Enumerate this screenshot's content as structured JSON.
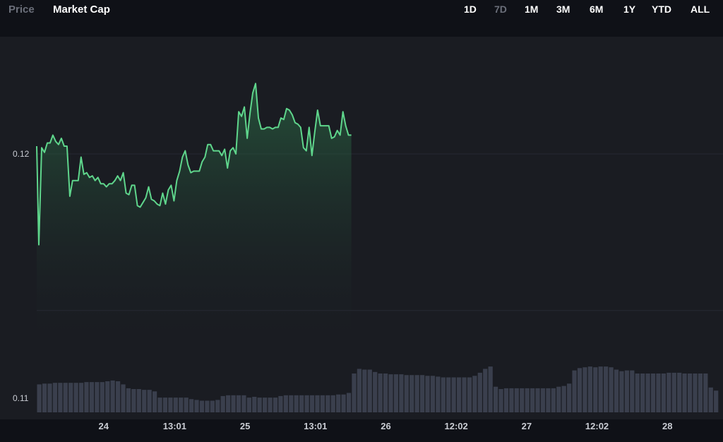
{
  "tabs": {
    "price": "Price",
    "market_cap": "Market Cap"
  },
  "ranges": [
    {
      "label": "1D",
      "active": false
    },
    {
      "label": "7D",
      "active": true
    },
    {
      "label": "1M",
      "active": false
    },
    {
      "label": "3M",
      "active": false
    },
    {
      "label": "6M",
      "active": false
    },
    {
      "label": "1Y",
      "active": false
    },
    {
      "label": "YTD",
      "active": false
    },
    {
      "label": "ALL",
      "active": false
    }
  ],
  "colors": {
    "line": "#5fd68c",
    "volume": "#3a3f4d",
    "background": "#1a1c22",
    "grid": "#262933"
  },
  "chart_data": {
    "type": "area",
    "title": "",
    "xlabel": "",
    "ylabel": "",
    "ylim": [
      0.1071,
      0.1251
    ],
    "y_ticks": [
      {
        "value": 0.12,
        "label": "0.12"
      },
      {
        "value": 0.11,
        "label": "0.11"
      }
    ],
    "x_range": [
      0.175,
      5.02
    ],
    "x_ticks": [
      {
        "pos": 0.65,
        "label": "24"
      },
      {
        "pos": 1.155,
        "label": "13:01"
      },
      {
        "pos": 1.655,
        "label": "25"
      },
      {
        "pos": 2.155,
        "label": "13:01"
      },
      {
        "pos": 2.655,
        "label": "26"
      },
      {
        "pos": 3.155,
        "label": "12:02"
      },
      {
        "pos": 3.655,
        "label": "27"
      },
      {
        "pos": 4.155,
        "label": "12:02"
      },
      {
        "pos": 4.655,
        "label": "28"
      }
    ],
    "series": [
      {
        "points": [
          [
            0.175,
            0.1205
          ],
          [
            0.19,
            0.1142
          ],
          [
            0.21,
            0.1204
          ],
          [
            0.23,
            0.1201
          ],
          [
            0.25,
            0.1207
          ],
          [
            0.27,
            0.1207
          ],
          [
            0.29,
            0.1212
          ],
          [
            0.31,
            0.1208
          ],
          [
            0.33,
            0.1206
          ],
          [
            0.35,
            0.121
          ],
          [
            0.37,
            0.1205
          ],
          [
            0.39,
            0.1205
          ],
          [
            0.41,
            0.1173
          ],
          [
            0.43,
            0.1183
          ],
          [
            0.45,
            0.1183
          ],
          [
            0.47,
            0.1183
          ],
          [
            0.49,
            0.1198
          ],
          [
            0.51,
            0.1187
          ],
          [
            0.53,
            0.1188
          ],
          [
            0.55,
            0.1185
          ],
          [
            0.57,
            0.1186
          ],
          [
            0.59,
            0.1183
          ],
          [
            0.61,
            0.1185
          ],
          [
            0.63,
            0.1181
          ],
          [
            0.65,
            0.1181
          ],
          [
            0.67,
            0.1179
          ],
          [
            0.69,
            0.1181
          ],
          [
            0.71,
            0.1181
          ],
          [
            0.73,
            0.1183
          ],
          [
            0.75,
            0.1186
          ],
          [
            0.77,
            0.1183
          ],
          [
            0.79,
            0.1188
          ],
          [
            0.81,
            0.1175
          ],
          [
            0.83,
            0.1174
          ],
          [
            0.85,
            0.118
          ],
          [
            0.87,
            0.118
          ],
          [
            0.89,
            0.1167
          ],
          [
            0.91,
            0.1166
          ],
          [
            0.93,
            0.1169
          ],
          [
            0.95,
            0.1172
          ],
          [
            0.97,
            0.1179
          ],
          [
            0.99,
            0.1171
          ],
          [
            1.01,
            0.117
          ],
          [
            1.03,
            0.1168
          ],
          [
            1.05,
            0.1167
          ],
          [
            1.07,
            0.1175
          ],
          [
            1.09,
            0.1168
          ],
          [
            1.11,
            0.1177
          ],
          [
            1.13,
            0.118
          ],
          [
            1.15,
            0.117
          ],
          [
            1.17,
            0.1183
          ],
          [
            1.19,
            0.1189
          ],
          [
            1.21,
            0.1198
          ],
          [
            1.23,
            0.1202
          ],
          [
            1.25,
            0.1193
          ],
          [
            1.27,
            0.1188
          ],
          [
            1.29,
            0.1189
          ],
          [
            1.31,
            0.1189
          ],
          [
            1.33,
            0.1189
          ],
          [
            1.35,
            0.1195
          ],
          [
            1.37,
            0.1198
          ],
          [
            1.39,
            0.1206
          ],
          [
            1.41,
            0.1206
          ],
          [
            1.43,
            0.1202
          ],
          [
            1.45,
            0.1202
          ],
          [
            1.47,
            0.1202
          ],
          [
            1.49,
            0.1199
          ],
          [
            1.51,
            0.1203
          ],
          [
            1.53,
            0.1191
          ],
          [
            1.55,
            0.1202
          ],
          [
            1.57,
            0.1204
          ],
          [
            1.59,
            0.12
          ],
          [
            1.61,
            0.1227
          ],
          [
            1.63,
            0.1224
          ],
          [
            1.65,
            0.123
          ],
          [
            1.67,
            0.121
          ],
          [
            1.69,
            0.1226
          ],
          [
            1.71,
            0.1239
          ],
          [
            1.73,
            0.1245
          ],
          [
            1.75,
            0.1223
          ],
          [
            1.77,
            0.1216
          ],
          [
            1.79,
            0.1216
          ],
          [
            1.81,
            0.1217
          ],
          [
            1.83,
            0.1217
          ],
          [
            1.85,
            0.1216
          ],
          [
            1.87,
            0.1217
          ],
          [
            1.89,
            0.1217
          ],
          [
            1.91,
            0.1223
          ],
          [
            1.93,
            0.1222
          ],
          [
            1.95,
            0.1229
          ],
          [
            1.97,
            0.1228
          ],
          [
            1.99,
            0.1225
          ],
          [
            2.01,
            0.122
          ],
          [
            2.03,
            0.1219
          ],
          [
            2.05,
            0.1217
          ],
          [
            2.07,
            0.1204
          ],
          [
            2.09,
            0.1202
          ],
          [
            2.11,
            0.1217
          ],
          [
            2.13,
            0.1199
          ],
          [
            2.15,
            0.1214
          ],
          [
            2.17,
            0.1228
          ],
          [
            2.19,
            0.1218
          ],
          [
            2.21,
            0.1218
          ],
          [
            2.23,
            0.1218
          ],
          [
            2.25,
            0.1218
          ],
          [
            2.27,
            0.121
          ],
          [
            2.29,
            0.1211
          ],
          [
            2.31,
            0.1215
          ],
          [
            2.33,
            0.1212
          ],
          [
            2.35,
            0.1227
          ],
          [
            2.37,
            0.1218
          ],
          [
            2.39,
            0.1212
          ],
          [
            2.41,
            0.1212
          ]
        ]
      }
    ],
    "volume_scale": [
      0,
      1
    ],
    "volume": [
      0.36,
      0.37,
      0.37,
      0.38,
      0.38,
      0.38,
      0.38,
      0.38,
      0.38,
      0.39,
      0.39,
      0.39,
      0.39,
      0.4,
      0.41,
      0.4,
      0.36,
      0.31,
      0.3,
      0.3,
      0.29,
      0.29,
      0.27,
      0.19,
      0.19,
      0.19,
      0.19,
      0.19,
      0.19,
      0.17,
      0.16,
      0.15,
      0.15,
      0.15,
      0.16,
      0.21,
      0.22,
      0.22,
      0.22,
      0.22,
      0.19,
      0.2,
      0.19,
      0.19,
      0.19,
      0.19,
      0.21,
      0.22,
      0.22,
      0.22,
      0.22,
      0.22,
      0.22,
      0.22,
      0.22,
      0.22,
      0.22,
      0.23,
      0.23,
      0.25,
      0.5,
      0.56,
      0.55,
      0.55,
      0.52,
      0.5,
      0.5,
      0.49,
      0.49,
      0.49,
      0.48,
      0.48,
      0.48,
      0.48,
      0.47,
      0.47,
      0.46,
      0.45,
      0.45,
      0.45,
      0.45,
      0.45,
      0.45,
      0.47,
      0.51,
      0.56,
      0.59,
      0.33,
      0.3,
      0.31,
      0.31,
      0.31,
      0.31,
      0.31,
      0.31,
      0.31,
      0.31,
      0.31,
      0.31,
      0.33,
      0.34,
      0.37,
      0.54,
      0.57,
      0.58,
      0.59,
      0.58,
      0.59,
      0.59,
      0.58,
      0.55,
      0.53,
      0.54,
      0.54,
      0.5,
      0.5,
      0.5,
      0.5,
      0.5,
      0.5,
      0.51,
      0.51,
      0.51,
      0.5,
      0.5,
      0.5,
      0.5,
      0.5,
      0.32,
      0.28
    ]
  }
}
